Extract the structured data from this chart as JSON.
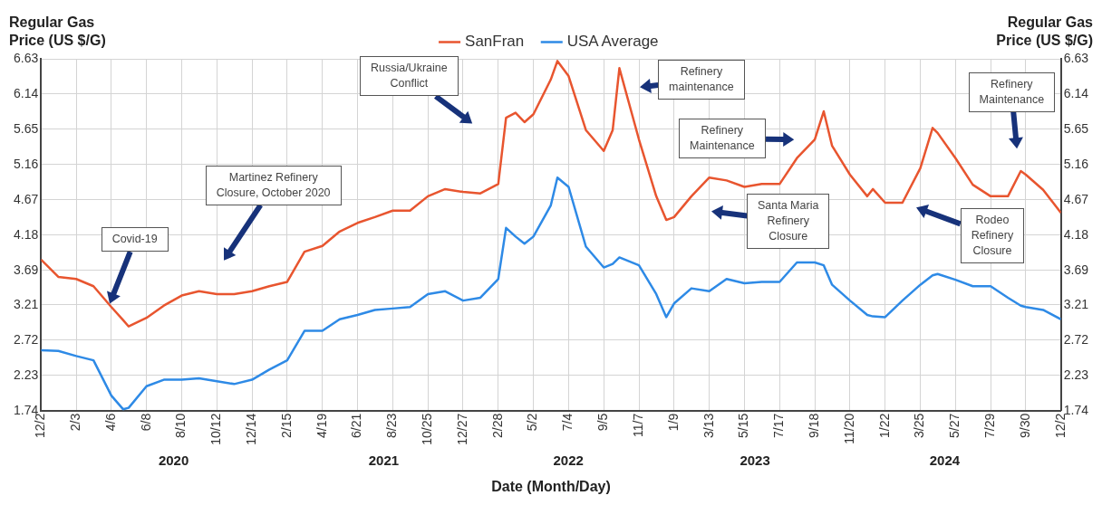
{
  "chart_data": {
    "type": "line",
    "xlabel": "Date (Month/Day)",
    "ylabel": "Regular Gas Price (US $/G)",
    "y2label": "Regular Gas Price (US $/G)",
    "x": [
      "2019-12-02",
      "2020-01-02",
      "2020-02-03",
      "2020-03-05",
      "2020-04-06",
      "2020-04-27",
      "2020-05-07",
      "2020-06-08",
      "2020-07-09",
      "2020-08-10",
      "2020-09-10",
      "2020-10-12",
      "2020-11-12",
      "2020-12-14",
      "2021-01-14",
      "2021-02-15",
      "2021-03-18",
      "2021-04-19",
      "2021-05-20",
      "2021-06-21",
      "2021-07-22",
      "2021-08-23",
      "2021-09-23",
      "2021-10-25",
      "2021-11-25",
      "2021-12-27",
      "2022-01-27",
      "2022-02-28",
      "2022-03-14",
      "2022-03-31",
      "2022-04-16",
      "2022-05-02",
      "2022-06-02",
      "2022-06-14",
      "2022-07-04",
      "2022-08-04",
      "2022-09-05",
      "2022-09-21",
      "2022-10-03",
      "2022-11-07",
      "2022-12-08",
      "2022-12-26",
      "2023-01-09",
      "2023-02-09",
      "2023-03-13",
      "2023-04-13",
      "2023-05-15",
      "2023-06-15",
      "2023-07-17",
      "2023-08-17",
      "2023-09-18",
      "2023-10-04",
      "2023-10-19",
      "2023-11-20",
      "2023-12-21",
      "2023-12-31",
      "2024-01-22",
      "2024-02-22",
      "2024-03-25",
      "2024-04-16",
      "2024-04-25",
      "2024-05-27",
      "2024-06-27",
      "2024-07-29",
      "2024-08-29",
      "2024-09-21",
      "2024-09-30",
      "2024-10-31",
      "2024-12-02"
    ],
    "series": [
      {
        "name": "SanFran",
        "color": "#e8552f",
        "values": [
          3.84,
          3.6,
          3.57,
          3.47,
          3.18,
          3.0,
          2.91,
          3.03,
          3.2,
          3.34,
          3.4,
          3.36,
          3.36,
          3.4,
          3.47,
          3.53,
          3.95,
          4.03,
          4.23,
          4.35,
          4.43,
          4.52,
          4.52,
          4.72,
          4.82,
          4.78,
          4.76,
          4.89,
          5.81,
          5.88,
          5.75,
          5.86,
          6.34,
          6.6,
          6.39,
          5.64,
          5.35,
          5.64,
          6.5,
          5.51,
          4.72,
          4.39,
          4.43,
          4.72,
          4.98,
          4.94,
          4.85,
          4.89,
          4.89,
          5.25,
          5.51,
          5.9,
          5.42,
          5.02,
          4.72,
          4.82,
          4.63,
          4.63,
          5.11,
          5.67,
          5.6,
          5.25,
          4.88,
          4.72,
          4.72,
          5.07,
          5.02,
          4.81,
          4.49
        ]
      },
      {
        "name": "USA Average",
        "color": "#2e8ae6",
        "values": [
          2.58,
          2.57,
          2.5,
          2.44,
          1.95,
          1.76,
          1.78,
          2.08,
          2.17,
          2.17,
          2.19,
          2.15,
          2.11,
          2.17,
          2.31,
          2.44,
          2.85,
          2.85,
          3.01,
          3.07,
          3.14,
          3.16,
          3.18,
          3.36,
          3.4,
          3.27,
          3.31,
          3.57,
          4.28,
          4.16,
          4.06,
          4.16,
          4.59,
          4.98,
          4.85,
          4.02,
          3.73,
          3.78,
          3.87,
          3.76,
          3.36,
          3.04,
          3.23,
          3.44,
          3.4,
          3.57,
          3.51,
          3.53,
          3.53,
          3.8,
          3.8,
          3.76,
          3.49,
          3.27,
          3.07,
          3.05,
          3.04,
          3.27,
          3.49,
          3.62,
          3.64,
          3.56,
          3.47,
          3.47,
          3.31,
          3.2,
          3.18,
          3.14,
          3.01
        ]
      }
    ],
    "xlim": [
      "2019-12-02",
      "2024-12-02"
    ],
    "xticks": [
      {
        "value": "2019-12-02",
        "label": "12/2"
      },
      {
        "value": "2020-02-03",
        "label": "2/3"
      },
      {
        "value": "2020-04-06",
        "label": "4/6"
      },
      {
        "value": "2020-06-08",
        "label": "6/8"
      },
      {
        "value": "2020-08-10",
        "label": "8/10"
      },
      {
        "value": "2020-10-12",
        "label": "10/12"
      },
      {
        "value": "2020-12-14",
        "label": "12/14"
      },
      {
        "value": "2021-02-15",
        "label": "2/15"
      },
      {
        "value": "2021-04-19",
        "label": "4/19"
      },
      {
        "value": "2021-06-21",
        "label": "6/21"
      },
      {
        "value": "2021-08-23",
        "label": "8/23"
      },
      {
        "value": "2021-10-25",
        "label": "10/25"
      },
      {
        "value": "2021-12-27",
        "label": "12/27"
      },
      {
        "value": "2022-02-28",
        "label": "2/28"
      },
      {
        "value": "2022-05-02",
        "label": "5/2"
      },
      {
        "value": "2022-07-04",
        "label": "7/4"
      },
      {
        "value": "2022-09-05",
        "label": "9/5"
      },
      {
        "value": "2022-11-07",
        "label": "11/7"
      },
      {
        "value": "2023-01-09",
        "label": "1/9"
      },
      {
        "value": "2023-03-13",
        "label": "3/13"
      },
      {
        "value": "2023-05-15",
        "label": "5/15"
      },
      {
        "value": "2023-07-17",
        "label": "7/17"
      },
      {
        "value": "2023-09-18",
        "label": "9/18"
      },
      {
        "value": "2023-11-20",
        "label": "11/20"
      },
      {
        "value": "2024-01-22",
        "label": "1/22"
      },
      {
        "value": "2024-03-25",
        "label": "3/25"
      },
      {
        "value": "2024-05-27",
        "label": "5/27"
      },
      {
        "value": "2024-07-29",
        "label": "7/29"
      },
      {
        "value": "2024-09-30",
        "label": "9/30"
      },
      {
        "value": "2024-12-02",
        "label": "12/2"
      }
    ],
    "ylim": [
      1.74,
      6.63
    ],
    "yticks": [
      1.74,
      2.23,
      2.72,
      3.21,
      3.69,
      4.18,
      4.67,
      5.16,
      5.65,
      6.14,
      6.63
    ],
    "y2lim": [
      1.74,
      6.63
    ],
    "y2ticks": [
      1.74,
      2.23,
      2.72,
      3.21,
      3.69,
      4.18,
      4.67,
      5.16,
      5.65,
      6.14,
      6.63
    ],
    "grid": true,
    "legend": "top",
    "marker": "none",
    "line_style": "solid",
    "annotations": [
      "Covid-19",
      "Martinez Refinery Closure, October 2020",
      "Russia/Ukraine Conflict",
      "Refinery maintenance",
      "Refinery Maintenance",
      "Santa Maria Refinery Closure",
      "Rodeo Refinery Closure",
      "Refinery Maintenance",
      "2020",
      "2021",
      "2022",
      "2023",
      "2024"
    ]
  }
}
